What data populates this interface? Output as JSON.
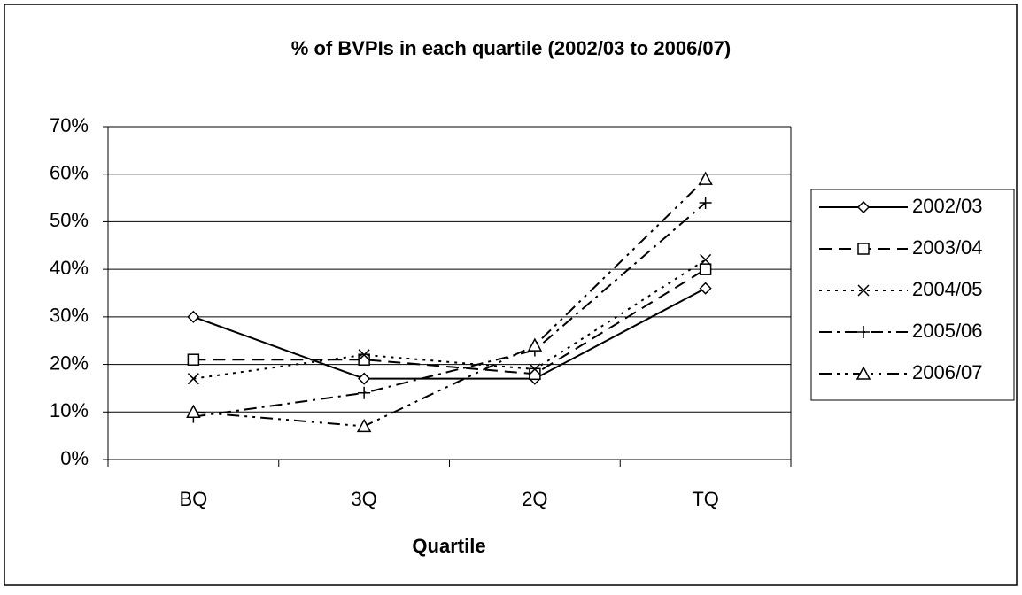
{
  "chart_data": {
    "type": "line",
    "title": "% of BVPIs in each quartile (2002/03 to 2006/07)",
    "xlabel": "Quartile",
    "categories": [
      "BQ",
      "3Q",
      "2Q",
      "TQ"
    ],
    "series": [
      {
        "name": "2002/03",
        "color": "#000000",
        "dash": "solid",
        "marker": "diamond",
        "values": [
          30,
          17,
          17,
          36
        ]
      },
      {
        "name": "2003/04",
        "color": "#000000",
        "dash": "dashed",
        "marker": "square",
        "values": [
          21,
          21,
          18,
          40
        ]
      },
      {
        "name": "2004/05",
        "color": "#000000",
        "dash": "dotted",
        "marker": "x",
        "values": [
          17,
          22,
          19,
          42
        ]
      },
      {
        "name": "2005/06",
        "color": "#000000",
        "dash": "dash-dot",
        "marker": "plus",
        "values": [
          9,
          14,
          23,
          54
        ]
      },
      {
        "name": "2006/07",
        "color": "#000000",
        "dash": "dash-dot-dot",
        "marker": "triangle",
        "values": [
          10,
          7,
          24,
          59
        ]
      }
    ],
    "ylim": [
      0,
      70
    ],
    "yticks": [
      {
        "value": 0,
        "label": "0%"
      },
      {
        "value": 10,
        "label": "10%"
      },
      {
        "value": 20,
        "label": "20%"
      },
      {
        "value": 30,
        "label": "30%"
      },
      {
        "value": 40,
        "label": "40%"
      },
      {
        "value": 50,
        "label": "50%"
      },
      {
        "value": 60,
        "label": "60%"
      },
      {
        "value": 70,
        "label": "70%"
      }
    ],
    "grid": true,
    "legend": "right"
  }
}
